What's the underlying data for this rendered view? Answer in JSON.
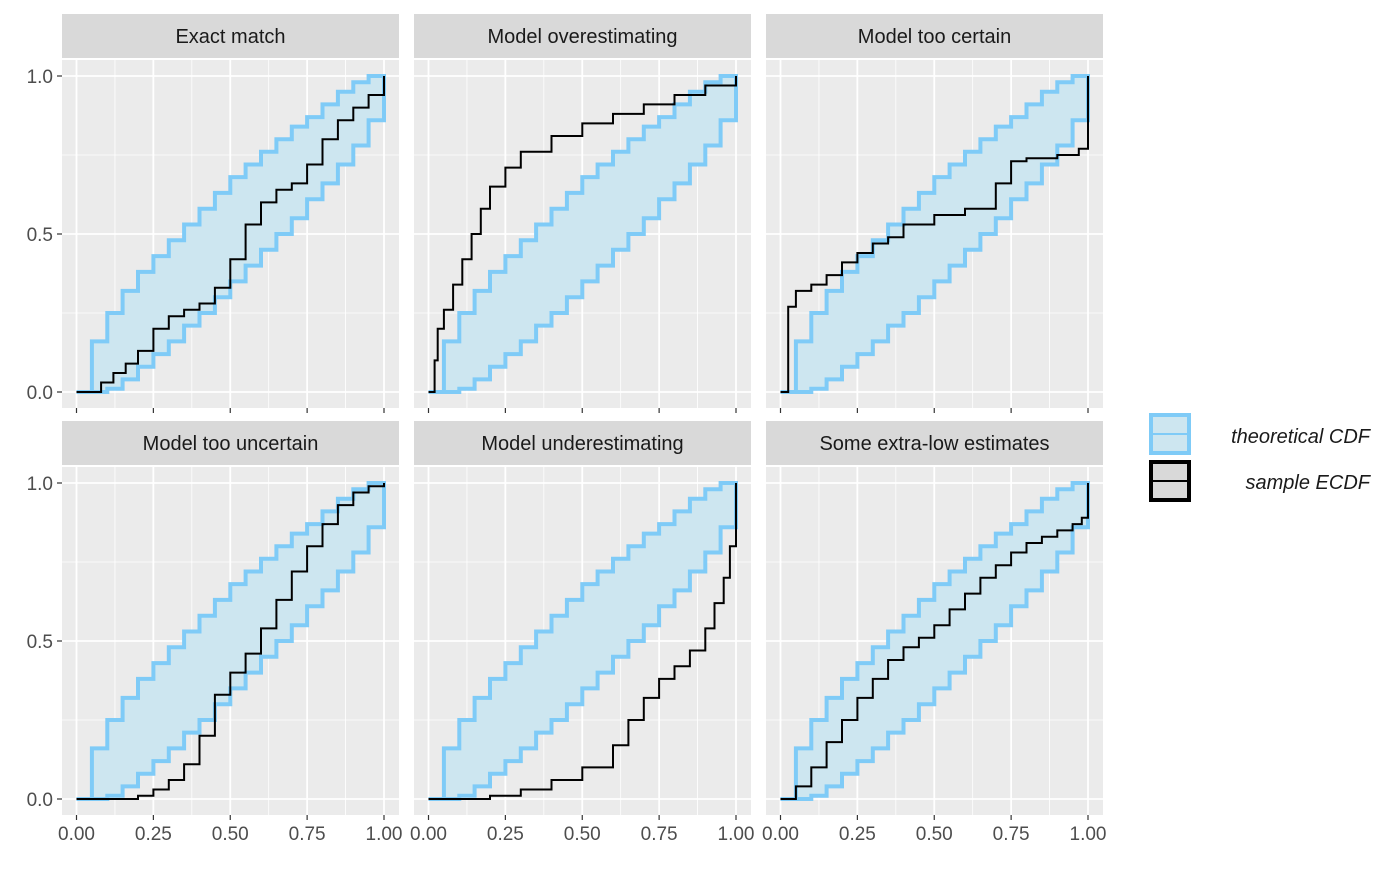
{
  "colors": {
    "panel_bg": "#EBEBEB",
    "strip_bg": "#D9D9D9",
    "grid": "#FFFFFF",
    "band_fill": "#CDE6F0",
    "band_stroke": "#7FCBF7",
    "ecdf": "#000000",
    "tick_text": "#4D4D4D",
    "strip_text": "#1A1A1A"
  },
  "chart_data": {
    "type": "line",
    "layout": "facet grid, 2 rows x 3 columns",
    "grid": true,
    "legend_position": "right",
    "legend": [
      {
        "label": "theoretical CDF",
        "key": "band"
      },
      {
        "label": "sample ECDF",
        "key": "ecdf"
      }
    ],
    "xlim": [
      0,
      1
    ],
    "ylim": [
      0,
      1
    ],
    "x_ticks": [
      0.0,
      0.25,
      0.5,
      0.75,
      1.0
    ],
    "x_tick_labels": [
      "0.00",
      "0.25",
      "0.50",
      "0.75",
      "1.00"
    ],
    "y_ticks": [
      0.0,
      0.5,
      1.0
    ],
    "y_tick_labels": [
      "0.0",
      "0.5",
      "1.0"
    ],
    "band": {
      "x": [
        0.0,
        0.05,
        0.1,
        0.15,
        0.2,
        0.25,
        0.3,
        0.35,
        0.4,
        0.45,
        0.5,
        0.55,
        0.6,
        0.65,
        0.7,
        0.75,
        0.8,
        0.85,
        0.9,
        0.95,
        1.0
      ],
      "upper": [
        0.0,
        0.16,
        0.25,
        0.32,
        0.38,
        0.43,
        0.48,
        0.53,
        0.58,
        0.63,
        0.68,
        0.72,
        0.76,
        0.8,
        0.84,
        0.87,
        0.91,
        0.95,
        0.98,
        1.0,
        1.0
      ],
      "lower": [
        0.0,
        0.0,
        0.01,
        0.04,
        0.08,
        0.12,
        0.16,
        0.21,
        0.25,
        0.3,
        0.35,
        0.4,
        0.45,
        0.5,
        0.55,
        0.61,
        0.66,
        0.72,
        0.78,
        0.86,
        1.0
      ]
    },
    "panels": [
      {
        "title": "Exact match",
        "ecdf": {
          "x": [
            0.0,
            0.04,
            0.08,
            0.12,
            0.16,
            0.2,
            0.25,
            0.3,
            0.35,
            0.4,
            0.45,
            0.5,
            0.55,
            0.6,
            0.65,
            0.7,
            0.75,
            0.8,
            0.85,
            0.9,
            0.95,
            1.0
          ],
          "y": [
            0.0,
            0.0,
            0.03,
            0.06,
            0.09,
            0.13,
            0.2,
            0.24,
            0.26,
            0.28,
            0.33,
            0.42,
            0.53,
            0.6,
            0.64,
            0.66,
            0.72,
            0.8,
            0.86,
            0.9,
            0.94,
            1.0
          ]
        }
      },
      {
        "title": "Model overestimating",
        "ecdf": {
          "x": [
            0.0,
            0.02,
            0.03,
            0.05,
            0.08,
            0.11,
            0.14,
            0.17,
            0.2,
            0.25,
            0.3,
            0.4,
            0.5,
            0.6,
            0.7,
            0.8,
            0.9,
            1.0
          ],
          "y": [
            0.0,
            0.1,
            0.2,
            0.26,
            0.34,
            0.42,
            0.5,
            0.58,
            0.65,
            0.71,
            0.76,
            0.81,
            0.85,
            0.88,
            0.91,
            0.94,
            0.97,
            1.0
          ]
        }
      },
      {
        "title": "Model too certain",
        "ecdf": {
          "x": [
            0.0,
            0.02,
            0.025,
            0.05,
            0.1,
            0.15,
            0.2,
            0.25,
            0.3,
            0.35,
            0.4,
            0.5,
            0.6,
            0.7,
            0.75,
            0.8,
            0.9,
            0.97,
            1.0
          ],
          "y": [
            0.0,
            0.0,
            0.27,
            0.32,
            0.34,
            0.37,
            0.41,
            0.44,
            0.47,
            0.49,
            0.53,
            0.56,
            0.58,
            0.66,
            0.73,
            0.74,
            0.75,
            0.77,
            1.0
          ]
        }
      },
      {
        "title": "Model too uncertain",
        "ecdf": {
          "x": [
            0.0,
            0.1,
            0.2,
            0.25,
            0.3,
            0.35,
            0.4,
            0.45,
            0.5,
            0.55,
            0.6,
            0.65,
            0.7,
            0.75,
            0.8,
            0.85,
            0.9,
            0.95,
            1.0
          ],
          "y": [
            0.0,
            0.0,
            0.01,
            0.03,
            0.06,
            0.11,
            0.2,
            0.33,
            0.4,
            0.46,
            0.54,
            0.63,
            0.72,
            0.8,
            0.87,
            0.93,
            0.97,
            0.99,
            1.0
          ]
        }
      },
      {
        "title": "Model underestimating",
        "ecdf": {
          "x": [
            0.0,
            0.1,
            0.2,
            0.3,
            0.4,
            0.5,
            0.6,
            0.65,
            0.7,
            0.75,
            0.8,
            0.85,
            0.9,
            0.93,
            0.96,
            0.98,
            1.0
          ],
          "y": [
            0.0,
            0.0,
            0.01,
            0.03,
            0.06,
            0.1,
            0.17,
            0.25,
            0.32,
            0.38,
            0.42,
            0.47,
            0.54,
            0.62,
            0.7,
            0.8,
            1.0
          ]
        }
      },
      {
        "title": "Some extra-low estimates",
        "ecdf": {
          "x": [
            0.0,
            0.02,
            0.05,
            0.1,
            0.15,
            0.2,
            0.25,
            0.3,
            0.35,
            0.4,
            0.45,
            0.5,
            0.55,
            0.6,
            0.65,
            0.7,
            0.75,
            0.8,
            0.85,
            0.9,
            0.95,
            0.98,
            1.0
          ],
          "y": [
            0.0,
            0.0,
            0.04,
            0.1,
            0.18,
            0.25,
            0.32,
            0.38,
            0.44,
            0.48,
            0.51,
            0.55,
            0.6,
            0.65,
            0.7,
            0.74,
            0.78,
            0.81,
            0.83,
            0.85,
            0.87,
            0.89,
            1.0
          ]
        }
      }
    ]
  }
}
